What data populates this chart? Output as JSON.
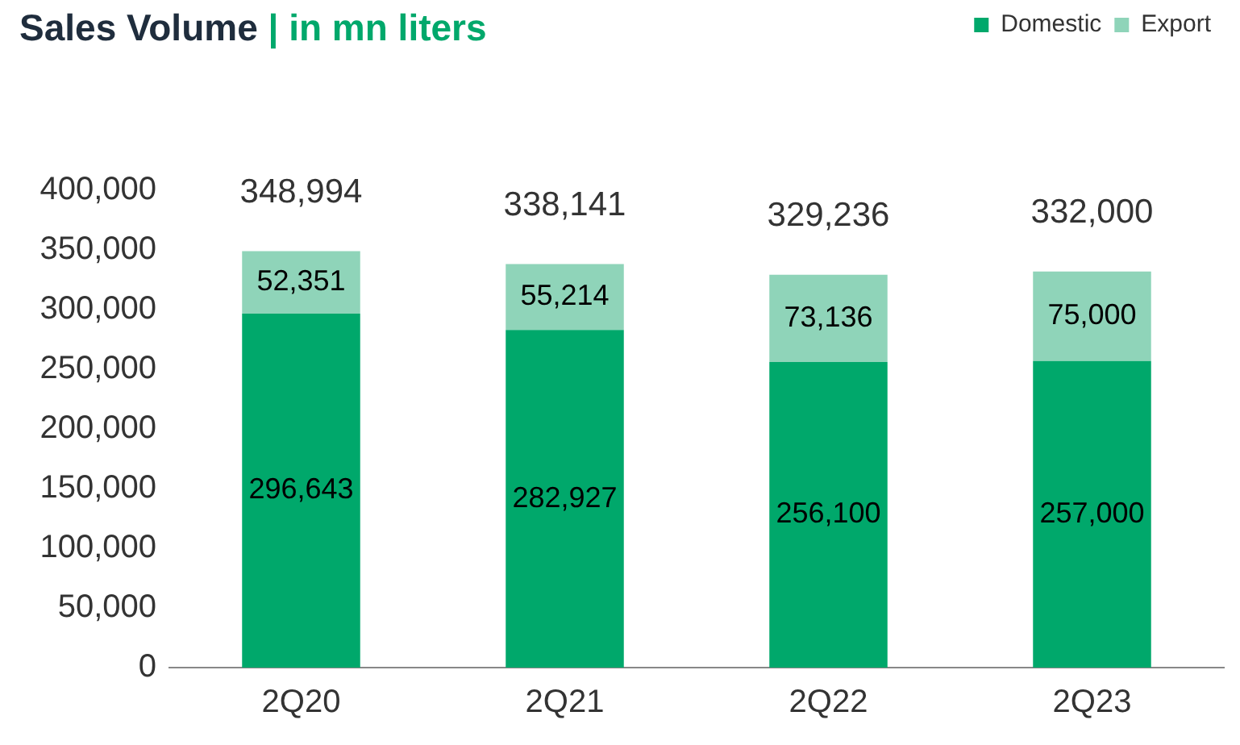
{
  "chart_data": {
    "type": "bar",
    "title": "Sales Volume",
    "subtitle": "| in mn liters",
    "categories": [
      "2Q20",
      "2Q21",
      "2Q22",
      "2Q23"
    ],
    "series": [
      {
        "name": "Domestic",
        "color": "#00a86b",
        "values": [
          296643,
          282927,
          256100,
          257000
        ],
        "value_labels": [
          "296,643",
          "282,927",
          "256,100",
          "257,000"
        ]
      },
      {
        "name": "Export",
        "color": "#8fd4b9",
        "values": [
          52351,
          55214,
          73136,
          75000
        ],
        "value_labels": [
          "52,351",
          "55,214",
          "73,136",
          "75,000"
        ]
      }
    ],
    "stacked": true,
    "totals": [
      "348,994",
      "338,141",
      "329,236",
      "332,000"
    ],
    "ylim": [
      0,
      400000
    ],
    "yticks": [
      {
        "value": 0,
        "label": "0"
      },
      {
        "value": 50000,
        "label": "50,000"
      },
      {
        "value": 100000,
        "label": "100,000"
      },
      {
        "value": 150000,
        "label": "150,000"
      },
      {
        "value": 200000,
        "label": "200,000"
      },
      {
        "value": 250000,
        "label": "250,000"
      },
      {
        "value": 300000,
        "label": "300,000"
      },
      {
        "value": 350000,
        "label": "350,000"
      },
      {
        "value": 400000,
        "label": "400,000"
      }
    ],
    "grid": false,
    "legend": "top right"
  }
}
